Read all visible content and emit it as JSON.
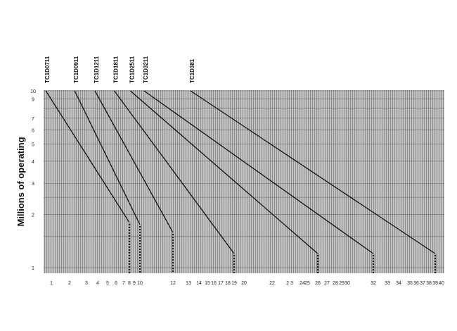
{
  "chart_data": {
    "type": "line",
    "title": "",
    "xlabel": "",
    "ylabel": "Millions of operating",
    "y_scale": "log",
    "ylim": [
      1,
      10
    ],
    "grid": true,
    "y_ticks": [
      "10",
      "9",
      "7",
      "6",
      "5",
      "4",
      "3",
      "2",
      "1"
    ],
    "x_ticks": [
      "1",
      "2",
      "3",
      "4",
      "5",
      "6",
      "7",
      "8",
      "9",
      "10",
      "12",
      "13",
      "14",
      "15",
      "16",
      "17",
      "18",
      "19",
      "20",
      "22",
      "2 3",
      "24",
      "25",
      "26",
      "27",
      "28",
      "29",
      "30",
      "32",
      "33",
      "34",
      "35",
      "36",
      "37",
      "38",
      "39",
      "40"
    ],
    "series": [
      {
        "name": "TC1D0711",
        "points": [
          [
            0.7,
            10
          ],
          [
            8,
            1.8
          ]
        ]
      },
      {
        "name": "TC1D0911",
        "points": [
          [
            2.3,
            10
          ],
          [
            10,
            1.75
          ]
        ]
      },
      {
        "name": "TC1D1211",
        "points": [
          [
            3.75,
            10
          ],
          [
            12,
            1.58
          ]
        ]
      },
      {
        "name": "TC1D1811",
        "points": [
          [
            5.8,
            10
          ],
          [
            19,
            1.2
          ]
        ]
      },
      {
        "name": "TC1D2511",
        "points": [
          [
            8.2,
            10
          ],
          [
            26,
            1.2
          ]
        ]
      },
      {
        "name": "TC1D3211",
        "points": [
          [
            10.25,
            10
          ],
          [
            32,
            1.2
          ]
        ]
      },
      {
        "name": "TC1D381",
        "points": [
          [
            13.2,
            10
          ],
          [
            39,
            1.2
          ]
        ]
      }
    ],
    "colors": {
      "grid_bg": "#b8b8b8",
      "line": "#111111",
      "dash": "#ffffff"
    }
  }
}
